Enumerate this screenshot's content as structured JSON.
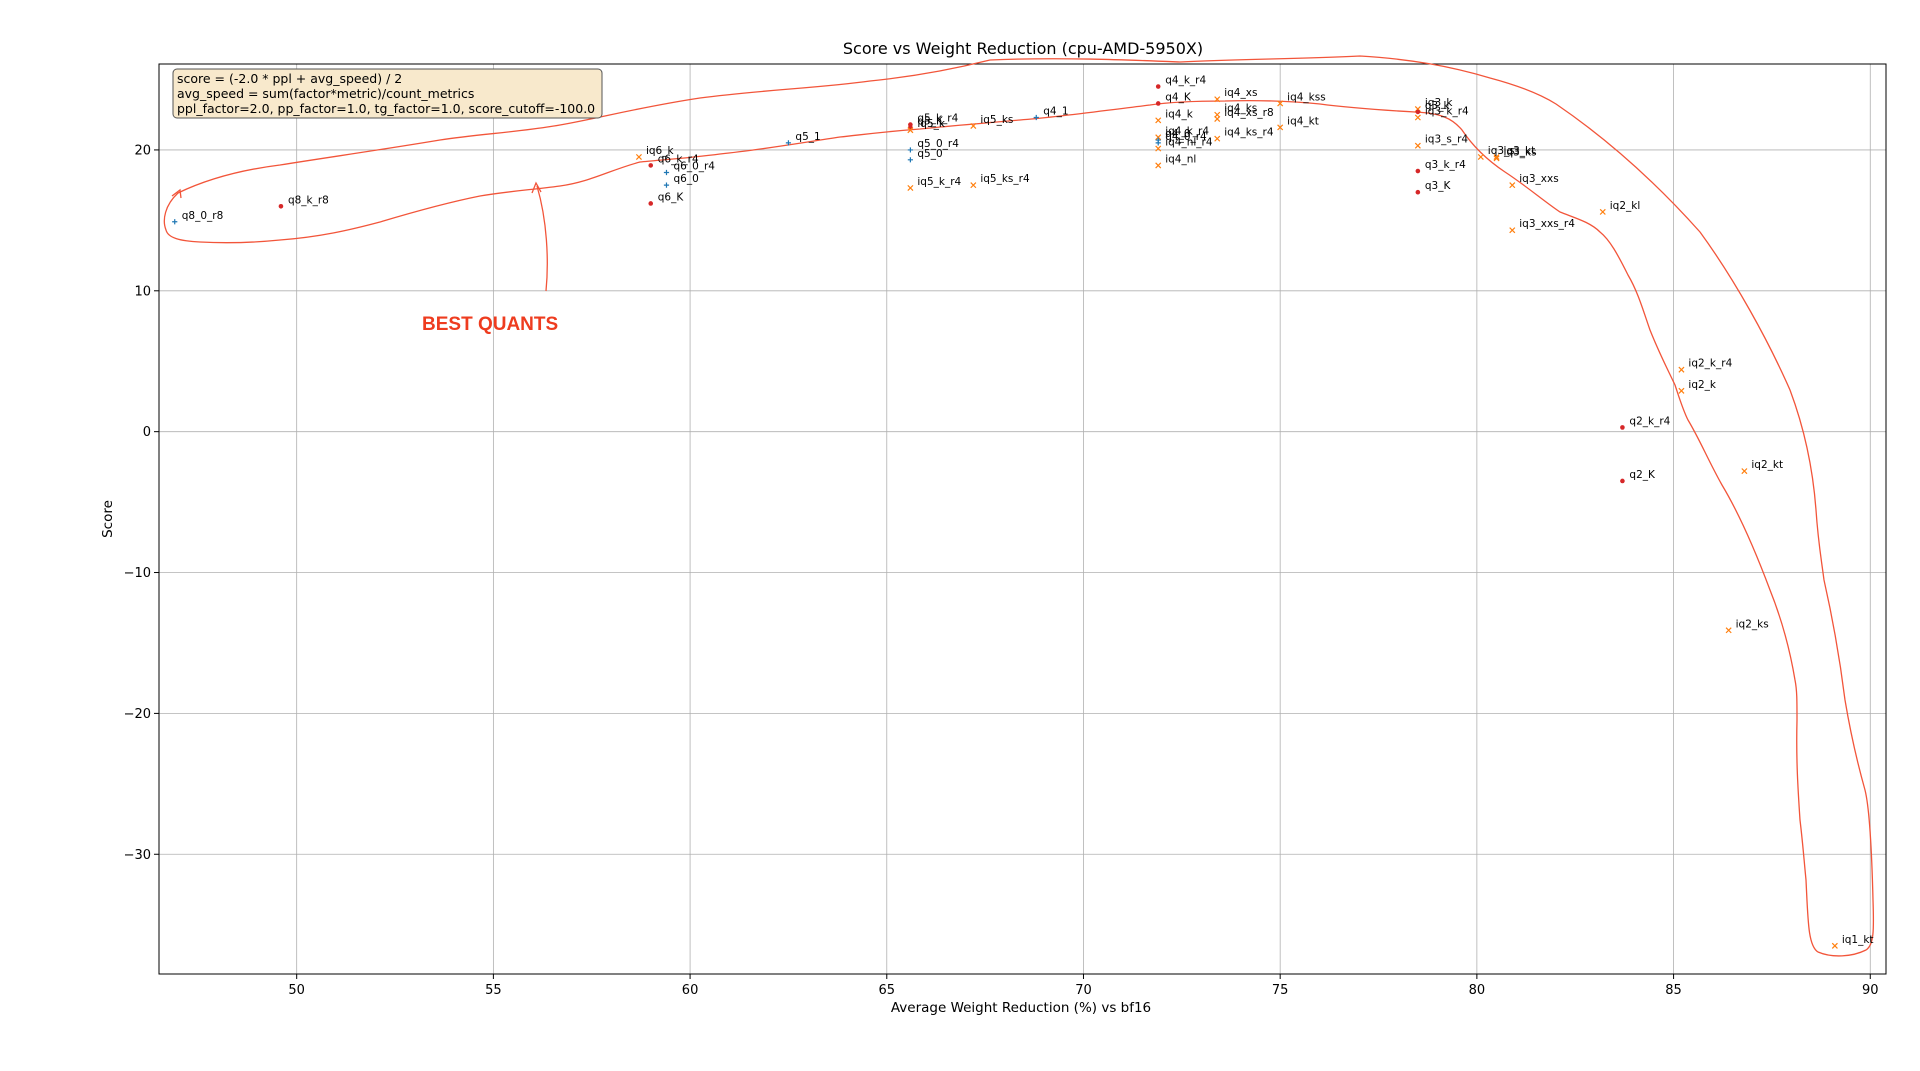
{
  "chart_data": {
    "type": "scatter",
    "title": "Score vs Weight Reduction (cpu-AMD-5950X)",
    "xlabel": "Average Weight Reduction (%) vs bf16",
    "ylabel": "Score",
    "xlim": [
      46.5,
      90.4
    ],
    "ylim": [
      -38.5,
      26.1
    ],
    "xticks": [
      50,
      55,
      60,
      65,
      70,
      75,
      80,
      85,
      90
    ],
    "yticks": [
      -30,
      -20,
      -10,
      0,
      10,
      20
    ],
    "xtick_labels": [
      "50",
      "55",
      "60",
      "65",
      "70",
      "75",
      "80",
      "85",
      "90"
    ],
    "ytick_labels": [
      "−30",
      "−20",
      "−10",
      "0",
      "10",
      "20"
    ],
    "grid": true,
    "formula_box": [
      "score = (-2.0 * ppl + avg_speed) / 2",
      "avg_speed = sum(factor*metric)/count_metrics",
      "ppl_factor=2.0, pp_factor=1.0, tg_factor=1.0, score_cutoff=-100.0"
    ],
    "annotation": {
      "text": "BEST QUANTS",
      "color": "#ee3c1f"
    },
    "points": [
      {
        "label": "q8_0_r8",
        "x": 46.9,
        "y": 14.9,
        "marker": "plus",
        "color": "#1f77b4"
      },
      {
        "label": "q8_k_r8",
        "x": 49.6,
        "y": 16.0,
        "marker": "dot",
        "color": "#d62728"
      },
      {
        "label": "iq6_k",
        "x": 58.7,
        "y": 19.5,
        "marker": "x",
        "color": "#ff7f0e"
      },
      {
        "label": "q6_k_r4",
        "x": 59.0,
        "y": 18.9,
        "marker": "dot",
        "color": "#d62728"
      },
      {
        "label": "q6_0_r4",
        "x": 59.4,
        "y": 18.4,
        "marker": "plus",
        "color": "#1f77b4"
      },
      {
        "label": "q6_0",
        "x": 59.4,
        "y": 17.5,
        "marker": "plus",
        "color": "#1f77b4"
      },
      {
        "label": "q6_K",
        "x": 59.0,
        "y": 16.2,
        "marker": "dot",
        "color": "#d62728"
      },
      {
        "label": "q5_1",
        "x": 62.5,
        "y": 20.5,
        "marker": "plus",
        "color": "#1f77b4"
      },
      {
        "label": "q5_k_r4",
        "x": 65.6,
        "y": 21.8,
        "marker": "dot",
        "color": "#d62728"
      },
      {
        "label": "q5_K",
        "x": 65.6,
        "y": 21.6,
        "marker": "dot",
        "color": "#d62728"
      },
      {
        "label": "iq5_k",
        "x": 65.6,
        "y": 21.4,
        "marker": "x",
        "color": "#ff7f0e"
      },
      {
        "label": "q5_0_r4",
        "x": 65.6,
        "y": 20.0,
        "marker": "plus",
        "color": "#1f77b4"
      },
      {
        "label": "q5_0",
        "x": 65.6,
        "y": 19.3,
        "marker": "plus",
        "color": "#1f77b4"
      },
      {
        "label": "iq5_k_r4",
        "x": 65.6,
        "y": 17.3,
        "marker": "x",
        "color": "#ff7f0e"
      },
      {
        "label": "iq5_ks",
        "x": 67.2,
        "y": 21.7,
        "marker": "x",
        "color": "#ff7f0e"
      },
      {
        "label": "iq5_ks_r4",
        "x": 67.2,
        "y": 17.5,
        "marker": "x",
        "color": "#ff7f0e"
      },
      {
        "label": "q4_1",
        "x": 68.8,
        "y": 22.3,
        "marker": "plus",
        "color": "#1f77b4"
      },
      {
        "label": "q4_k_r4",
        "x": 71.9,
        "y": 24.5,
        "marker": "dot",
        "color": "#d62728"
      },
      {
        "label": "q4_K",
        "x": 71.9,
        "y": 23.3,
        "marker": "dot",
        "color": "#d62728"
      },
      {
        "label": "iq4_k",
        "x": 71.9,
        "y": 22.1,
        "marker": "x",
        "color": "#ff7f0e"
      },
      {
        "label": "iq4_k_r4",
        "x": 71.9,
        "y": 20.9,
        "marker": "x",
        "color": "#ff7f0e"
      },
      {
        "label": "q4_0",
        "x": 71.9,
        "y": 20.7,
        "marker": "plus",
        "color": "#1f77b4"
      },
      {
        "label": "q4_0_r4",
        "x": 71.9,
        "y": 20.5,
        "marker": "plus",
        "color": "#1f77b4"
      },
      {
        "label": "iq4_nl_r4",
        "x": 71.9,
        "y": 20.1,
        "marker": "x",
        "color": "#ff7f0e"
      },
      {
        "label": "iq4_nl",
        "x": 71.9,
        "y": 18.9,
        "marker": "x",
        "color": "#ff7f0e"
      },
      {
        "label": "iq4_xs",
        "x": 73.4,
        "y": 23.6,
        "marker": "x",
        "color": "#ff7f0e"
      },
      {
        "label": "iq4_ks",
        "x": 73.4,
        "y": 22.5,
        "marker": "x",
        "color": "#ff7f0e"
      },
      {
        "label": "iq4_xs_r8",
        "x": 73.4,
        "y": 22.2,
        "marker": "x",
        "color": "#ff7f0e"
      },
      {
        "label": "iq4_ks_r4",
        "x": 73.4,
        "y": 20.8,
        "marker": "x",
        "color": "#ff7f0e"
      },
      {
        "label": "iq4_kss",
        "x": 75.0,
        "y": 23.3,
        "marker": "x",
        "color": "#ff7f0e"
      },
      {
        "label": "iq4_kt",
        "x": 75.0,
        "y": 21.6,
        "marker": "x",
        "color": "#ff7f0e"
      },
      {
        "label": "iq3_k",
        "x": 78.5,
        "y": 22.9,
        "marker": "x",
        "color": "#ff7f0e"
      },
      {
        "label": "q3_k",
        "x": 78.5,
        "y": 22.7,
        "marker": "dot",
        "color": "#d62728"
      },
      {
        "label": "iq3_k_r4",
        "x": 78.5,
        "y": 22.3,
        "marker": "x",
        "color": "#ff7f0e"
      },
      {
        "label": "iq3_s_r4",
        "x": 78.5,
        "y": 20.3,
        "marker": "x",
        "color": "#ff7f0e"
      },
      {
        "label": "q3_k_r4",
        "x": 78.5,
        "y": 18.5,
        "marker": "dot",
        "color": "#d62728"
      },
      {
        "label": "q3_K",
        "x": 78.5,
        "y": 17.0,
        "marker": "dot",
        "color": "#d62728"
      },
      {
        "label": "iq3_s",
        "x": 80.1,
        "y": 19.5,
        "marker": "x",
        "color": "#ff7f0e"
      },
      {
        "label": "iq3_ks",
        "x": 80.5,
        "y": 19.4,
        "marker": "x",
        "color": "#ff7f0e"
      },
      {
        "label": "iq3_kt",
        "x": 80.5,
        "y": 19.5,
        "marker": "x",
        "color": "#ff7f0e"
      },
      {
        "label": "iq3_xxs",
        "x": 80.9,
        "y": 17.5,
        "marker": "x",
        "color": "#ff7f0e"
      },
      {
        "label": "iq3_xxs_r4",
        "x": 80.9,
        "y": 14.3,
        "marker": "x",
        "color": "#ff7f0e"
      },
      {
        "label": "iq2_kl",
        "x": 83.2,
        "y": 15.6,
        "marker": "x",
        "color": "#ff7f0e"
      },
      {
        "label": "iq2_k_r4",
        "x": 85.2,
        "y": 4.4,
        "marker": "x",
        "color": "#ff7f0e"
      },
      {
        "label": "iq2_k",
        "x": 85.2,
        "y": 2.9,
        "marker": "x",
        "color": "#ff7f0e"
      },
      {
        "label": "q2_k_r4",
        "x": 83.7,
        "y": 0.3,
        "marker": "dot",
        "color": "#d62728"
      },
      {
        "label": "q2_K",
        "x": 83.7,
        "y": -3.5,
        "marker": "dot",
        "color": "#d62728"
      },
      {
        "label": "iq2_kt",
        "x": 86.8,
        "y": -2.8,
        "marker": "x",
        "color": "#ff7f0e"
      },
      {
        "label": "iq2_ks",
        "x": 86.4,
        "y": -14.1,
        "marker": "x",
        "color": "#ff7f0e"
      },
      {
        "label": "iq1_kt",
        "x": 89.1,
        "y": -36.5,
        "marker": "x",
        "color": "#ff7f0e"
      }
    ]
  }
}
